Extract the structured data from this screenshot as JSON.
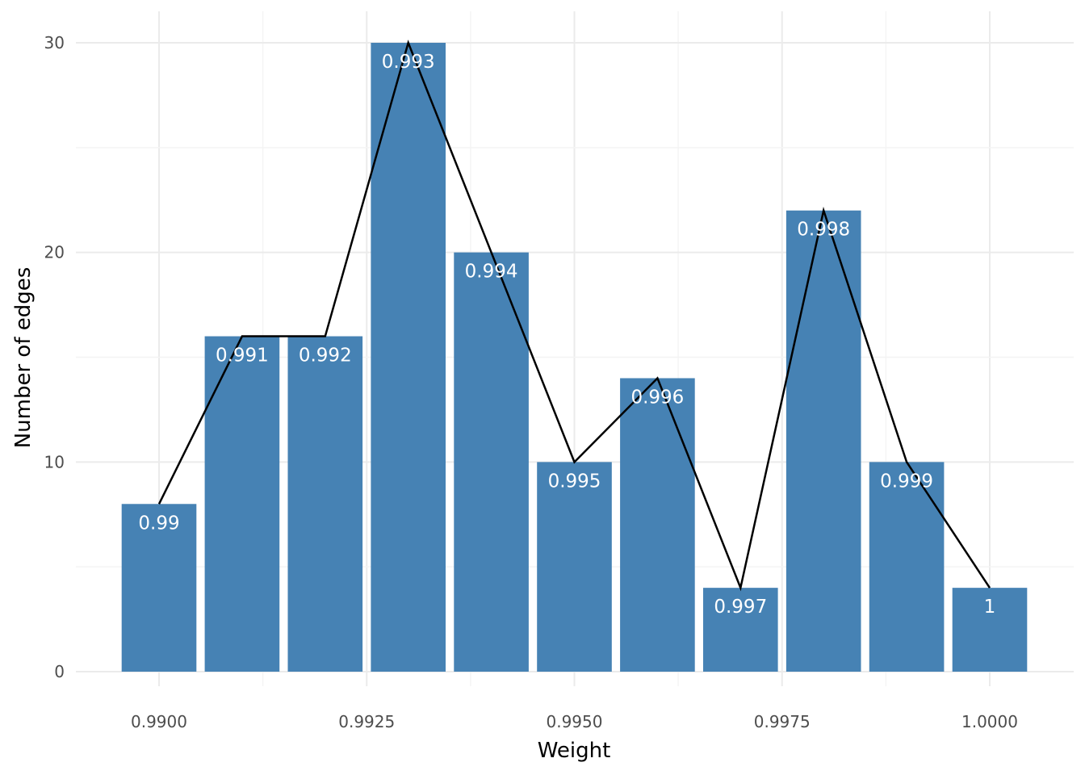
{
  "colors": {
    "bar": "#4682b4",
    "line": "#000000",
    "grid_major": "#ebebeb",
    "grid_minor": "#f4f4f4",
    "bar_label": "#ffffff",
    "background": "#ffffff"
  },
  "chart_data": {
    "type": "bar",
    "overlay": "line",
    "title": "",
    "xlabel": "Weight",
    "ylabel": "Number of edges",
    "x": [
      0.99,
      0.991,
      0.992,
      0.993,
      0.994,
      0.995,
      0.996,
      0.997,
      0.998,
      0.999,
      1.0
    ],
    "bar_labels": [
      "0.99",
      "0.991",
      "0.992",
      "0.993",
      "0.994",
      "0.995",
      "0.996",
      "0.997",
      "0.998",
      "0.999",
      "1"
    ],
    "values": [
      8,
      16,
      16,
      30,
      20,
      10,
      14,
      4,
      22,
      10,
      4
    ],
    "bar_width": 0.0009,
    "xlim": [
      0.9896,
      1.0004
    ],
    "ylim": [
      0,
      30
    ],
    "x_ticks": [
      0.99,
      0.9925,
      0.995,
      0.9975,
      1.0
    ],
    "x_tick_labels": [
      "0.9900",
      "0.9925",
      "0.9950",
      "0.9975",
      "1.0000"
    ],
    "y_ticks": [
      0,
      10,
      20,
      30
    ],
    "y_tick_labels": [
      "0",
      "10",
      "20",
      "30"
    ],
    "grid": true,
    "legend": "none"
  }
}
